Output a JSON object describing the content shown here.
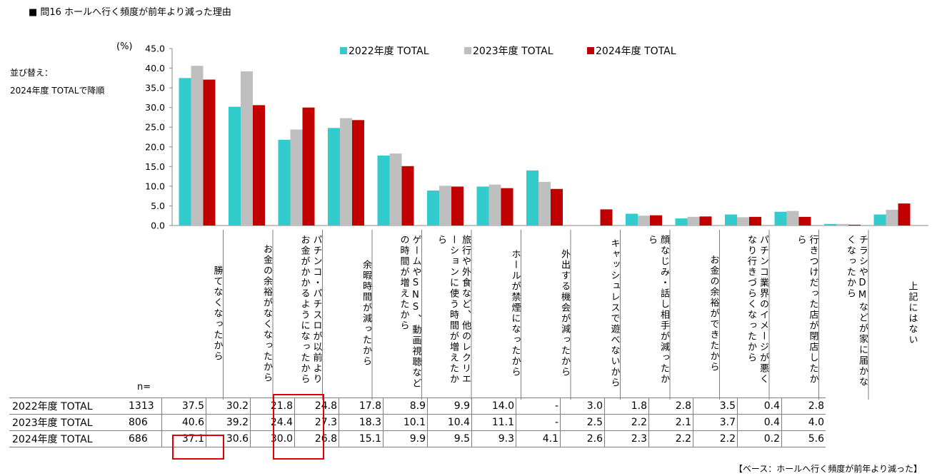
{
  "header": {
    "title": "■ 問16 ホールへ行く頻度が前年より減った理由",
    "sort_note_1": "並び替え：",
    "sort_note_2": "2024年度 TOTALで降順",
    "unit": "(%)",
    "n_label": "n=",
    "base_note": "【ベース：ホールへ行く頻度が前年より減った】"
  },
  "chart_data": {
    "type": "bar",
    "categories": [
      "勝てなくなったから",
      "お金の余裕がなくなったから",
      "パチンコ・パチスロが以前よりお金がかかるようになったから",
      "余暇時間が減ったから",
      "ゲームやSNS、動画視聴などの時間が増えたから",
      "旅行や外食など、他のレクリエーションに使う時間が増えたから",
      "ホールが禁煙になったから",
      "外出する機会が減ったから",
      "キャッシュレスで遊べないから",
      "顔なじみ・話し相手が減ったから",
      "お金の余裕ができたから",
      "パチンコ業界のイメージが悪くなり行きづらくなったから",
      "行きつけだった店が閉店したから",
      "チラシやDMなどが家に届かなくなったから",
      "上記にはない"
    ],
    "series": [
      {
        "name": "2022年度 TOTAL",
        "color": "#33CCCC",
        "n": "1313",
        "values": [
          37.5,
          30.2,
          21.8,
          24.8,
          17.8,
          8.9,
          9.9,
          14.0,
          null,
          3.0,
          1.8,
          2.8,
          3.5,
          0.4,
          2.8
        ],
        "labels": [
          "37.5",
          "30.2",
          "21.8",
          "24.8",
          "17.8",
          "8.9",
          "9.9",
          "14.0",
          "-",
          "3.0",
          "1.8",
          "2.8",
          "3.5",
          "0.4",
          "2.8"
        ]
      },
      {
        "name": "2023年度 TOTAL",
        "color": "#BFBFBF",
        "n": "806",
        "values": [
          40.6,
          39.2,
          24.4,
          27.3,
          18.3,
          10.1,
          10.4,
          11.1,
          null,
          2.5,
          2.2,
          2.1,
          3.7,
          0.4,
          4.0
        ],
        "labels": [
          "40.6",
          "39.2",
          "24.4",
          "27.3",
          "18.3",
          "10.1",
          "10.4",
          "11.1",
          "-",
          "2.5",
          "2.2",
          "2.1",
          "3.7",
          "0.4",
          "4.0"
        ]
      },
      {
        "name": "2024年度 TOTAL",
        "color": "#C00000",
        "n": "686",
        "values": [
          37.1,
          30.6,
          30.0,
          26.8,
          15.1,
          9.9,
          9.5,
          9.3,
          4.1,
          2.6,
          2.3,
          2.2,
          2.2,
          0.2,
          5.6
        ],
        "labels": [
          "37.1",
          "30.6",
          "30.0",
          "26.8",
          "15.1",
          "9.9",
          "9.5",
          "9.3",
          "4.1",
          "2.6",
          "2.3",
          "2.2",
          "2.2",
          "0.2",
          "5.6"
        ]
      }
    ],
    "yticks": [
      "0.0",
      "5.0",
      "10.0",
      "15.0",
      "20.0",
      "25.0",
      "30.0",
      "35.0",
      "40.0",
      "45.0"
    ],
    "ylim": [
      0,
      45
    ],
    "grid": false,
    "legend_position": "top"
  }
}
